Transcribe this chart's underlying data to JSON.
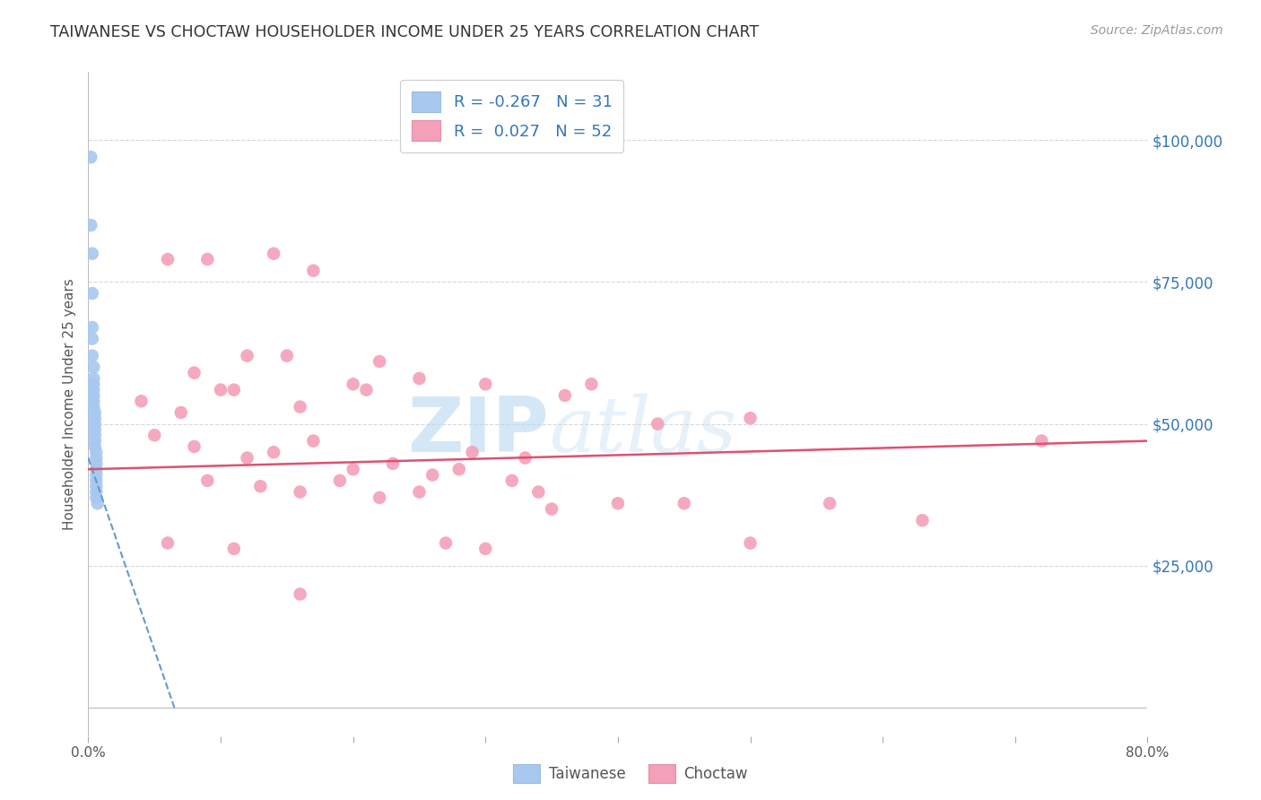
{
  "title": "TAIWANESE VS CHOCTAW HOUSEHOLDER INCOME UNDER 25 YEARS CORRELATION CHART",
  "source": "Source: ZipAtlas.com",
  "ylabel": "Householder Income Under 25 years",
  "x_min": 0.0,
  "x_max": 0.8,
  "y_min": -5000,
  "y_max": 112000,
  "background_color": "#ffffff",
  "grid_color": "#d8d8d8",
  "taiwan_color": "#a8c8f0",
  "choctaw_color": "#f4a0b8",
  "taiwan_trend_color": "#6699cc",
  "choctaw_trend_color": "#e05070",
  "taiwan_R": -0.267,
  "taiwan_N": 31,
  "choctaw_R": 0.027,
  "choctaw_N": 52,
  "watermark_zip": "ZIP",
  "watermark_atlas": "atlas",
  "legend_labels": [
    "Taiwanese",
    "Choctaw"
  ],
  "title_color": "#333333",
  "right_tick_color": "#3377bb",
  "taiwan_scatter_x": [
    0.002,
    0.002,
    0.003,
    0.003,
    0.003,
    0.003,
    0.003,
    0.004,
    0.004,
    0.004,
    0.004,
    0.004,
    0.004,
    0.004,
    0.005,
    0.005,
    0.005,
    0.005,
    0.005,
    0.005,
    0.005,
    0.006,
    0.006,
    0.006,
    0.006,
    0.006,
    0.006,
    0.006,
    0.006,
    0.006,
    0.007
  ],
  "taiwan_scatter_y": [
    97000,
    85000,
    80000,
    73000,
    67000,
    65000,
    62000,
    60000,
    58000,
    57000,
    56000,
    55000,
    54000,
    53000,
    52000,
    51000,
    50000,
    49000,
    48000,
    47000,
    46000,
    45000,
    44000,
    43000,
    42000,
    41000,
    40000,
    39000,
    38000,
    37000,
    36000
  ],
  "choctaw_scatter_x": [
    0.06,
    0.09,
    0.12,
    0.15,
    0.14,
    0.08,
    0.11,
    0.17,
    0.2,
    0.22,
    0.04,
    0.07,
    0.1,
    0.16,
    0.21,
    0.25,
    0.3,
    0.36,
    0.38,
    0.43,
    0.05,
    0.08,
    0.12,
    0.14,
    0.17,
    0.2,
    0.23,
    0.26,
    0.29,
    0.33,
    0.09,
    0.13,
    0.16,
    0.19,
    0.22,
    0.25,
    0.28,
    0.32,
    0.35,
    0.4,
    0.45,
    0.5,
    0.56,
    0.63,
    0.72,
    0.06,
    0.11,
    0.16,
    0.5,
    0.27,
    0.3,
    0.34
  ],
  "choctaw_scatter_y": [
    79000,
    79000,
    62000,
    62000,
    80000,
    59000,
    56000,
    77000,
    57000,
    61000,
    54000,
    52000,
    56000,
    53000,
    56000,
    58000,
    57000,
    55000,
    57000,
    50000,
    48000,
    46000,
    44000,
    45000,
    47000,
    42000,
    43000,
    41000,
    45000,
    44000,
    40000,
    39000,
    38000,
    40000,
    37000,
    38000,
    42000,
    40000,
    35000,
    36000,
    36000,
    51000,
    36000,
    33000,
    47000,
    29000,
    28000,
    20000,
    29000,
    29000,
    28000,
    38000
  ],
  "taiwan_trend_x": [
    0.0,
    0.065
  ],
  "taiwan_trend_y": [
    44000,
    0
  ],
  "choctaw_trend_x": [
    0.0,
    0.8
  ],
  "choctaw_trend_y": [
    42000,
    47000
  ],
  "xtick_positions": [
    0.0,
    0.1,
    0.2,
    0.3,
    0.4,
    0.5,
    0.6,
    0.7,
    0.8
  ],
  "xtick_labels": [
    "0.0%",
    "",
    "",
    "",
    "",
    "",
    "",
    "",
    "80.0%"
  ],
  "ytick_right": [
    25000,
    50000,
    75000,
    100000
  ],
  "ytick_right_labels": [
    "$25,000",
    "$50,000",
    "$75,000",
    "$100,000"
  ]
}
